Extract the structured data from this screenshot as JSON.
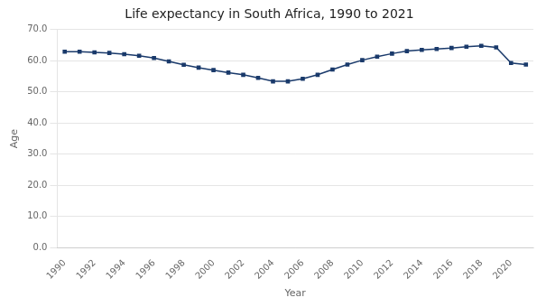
{
  "chart_data": {
    "type": "line",
    "title": "Life expectancy in South Africa, 1990 to 2021",
    "xlabel": "Year",
    "ylabel": "Age",
    "x": [
      1990,
      1991,
      1992,
      1993,
      1994,
      1995,
      1996,
      1997,
      1998,
      1999,
      2000,
      2001,
      2002,
      2003,
      2004,
      2005,
      2006,
      2007,
      2008,
      2009,
      2010,
      2011,
      2012,
      2013,
      2014,
      2015,
      2016,
      2017,
      2018,
      2019,
      2020,
      2021
    ],
    "values": [
      62.9,
      62.9,
      62.7,
      62.5,
      62.1,
      61.6,
      60.9,
      59.8,
      58.7,
      57.8,
      57.0,
      56.2,
      55.5,
      54.5,
      53.4,
      53.4,
      54.2,
      55.5,
      57.2,
      58.8,
      60.2,
      61.3,
      62.3,
      63.1,
      63.5,
      63.8,
      64.1,
      64.5,
      64.8,
      64.3,
      59.3,
      58.8
    ],
    "color": "#1a3a6b",
    "marker": "square",
    "xlim": [
      1989.5,
      2021.5
    ],
    "xticks": [
      1990,
      1992,
      1994,
      1996,
      1998,
      2000,
      2002,
      2004,
      2006,
      2008,
      2010,
      2012,
      2014,
      2016,
      2018,
      2020
    ],
    "ylim": [
      0,
      70
    ],
    "yticks": [
      {
        "value": 0,
        "label": "0.0"
      },
      {
        "value": 10,
        "label": "10.0"
      },
      {
        "value": 20,
        "label": "20.0"
      },
      {
        "value": 30,
        "label": "30.0"
      },
      {
        "value": 40,
        "label": "40.0"
      },
      {
        "value": 50,
        "label": "50.0"
      },
      {
        "value": 60,
        "label": "60.0"
      },
      {
        "value": 70,
        "label": "70.0"
      }
    ],
    "grid": "y"
  }
}
